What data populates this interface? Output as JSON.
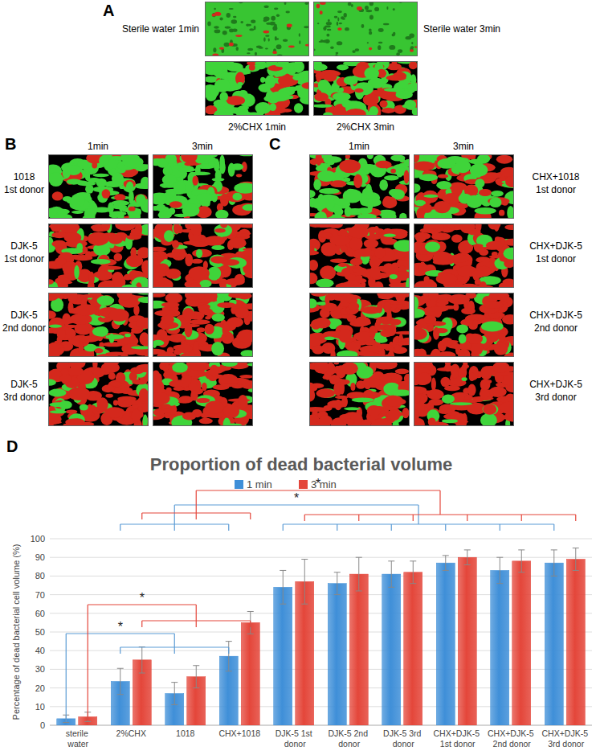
{
  "panels": {
    "A": {
      "label": "A",
      "captions": [
        "Sterile water 1min",
        "Sterile water 3min",
        "2%CHX 1min",
        "2%CHX 3min"
      ]
    },
    "B": {
      "label": "B",
      "columns": [
        "1min",
        "3min"
      ],
      "rows": [
        [
          "1018",
          "1st donor"
        ],
        [
          "DJK-5",
          "1st donor"
        ],
        [
          "DJK-5",
          "2nd  donor"
        ],
        [
          "DJK-5",
          "3rd donor"
        ]
      ]
    },
    "C": {
      "label": "C",
      "columns": [
        "1min",
        "3min"
      ],
      "rows": [
        [
          "CHX+1018",
          "1st donor"
        ],
        [
          "CHX+DJK-5",
          "1st donor"
        ],
        [
          "CHX+DJK-5",
          "2nd  donor"
        ],
        [
          "CHX+DJK-5",
          "3rd donor"
        ]
      ]
    },
    "D": {
      "label": "D"
    }
  },
  "chart_data": {
    "type": "bar",
    "title": "Proportion of dead bacterial volume",
    "y_label": "Percentage of dead bacterial cell volume (%)",
    "categories": [
      "sterile water",
      "2%CHX",
      "1018",
      "CHX+1018",
      "DJK-5 1st donor",
      "DJK-5 2nd donor",
      "DJK-5 3rd donor",
      "CHX+DJK-5 1st donor",
      "CHX+DJK-5 2nd donor",
      "CHX+DJK-5 3rd donor"
    ],
    "series": [
      {
        "name": "1 min",
        "color": "#3f8fd8",
        "values": [
          3.5,
          23.5,
          17,
          37,
          74,
          76,
          81,
          87,
          83,
          87
        ],
        "errors": [
          2,
          7,
          6,
          8,
          9,
          6,
          7,
          4,
          7,
          7
        ]
      },
      {
        "name": "3 min",
        "color": "#e4463a",
        "values": [
          4.5,
          35,
          26,
          55,
          77,
          81,
          82,
          90,
          88,
          89
        ],
        "errors": [
          2.5,
          7,
          6,
          6,
          12,
          9,
          6,
          4,
          6,
          6
        ]
      }
    ],
    "ylim": [
      0,
      100
    ],
    "yticks": [
      0,
      10,
      20,
      30,
      40,
      50,
      60,
      70,
      80,
      90,
      100
    ],
    "grid": true,
    "legend": "top",
    "annotations": [
      "*",
      "*",
      "*",
      "*"
    ]
  }
}
